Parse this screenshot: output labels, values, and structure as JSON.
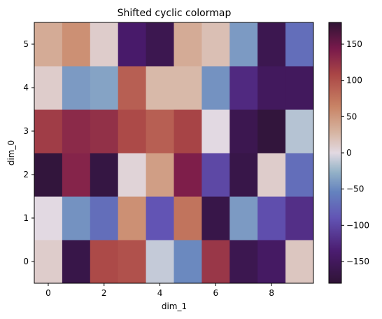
{
  "chart_data": {
    "type": "heatmap",
    "title": "Shifted cyclic colormap",
    "xlabel": "dim_1",
    "ylabel": "dim_0",
    "x_ticks": [
      0,
      2,
      4,
      6,
      8
    ],
    "y_ticks": [
      0,
      1,
      2,
      3,
      4,
      5
    ],
    "colorbar_ticks": [
      150,
      100,
      50,
      0,
      -50,
      -100,
      -150
    ],
    "colorbar_range": [
      -180,
      180
    ],
    "colormap": "twilight_shifted",
    "rows": [
      {
        "dim_0": 0,
        "values": [
          10,
          -165,
          105,
          100,
          -10,
          -50,
          120,
          -160,
          -145,
          15
        ]
      },
      {
        "dim_0": 1,
        "values": [
          0,
          -45,
          -70,
          55,
          -90,
          75,
          -165,
          -40,
          -95,
          -120
        ]
      },
      {
        "dim_0": 2,
        "values": [
          -175,
          135,
          -170,
          5,
          45,
          140,
          -100,
          -165,
          10,
          -70
        ]
      },
      {
        "dim_0": 3,
        "values": [
          115,
          130,
          125,
          105,
          90,
          110,
          0,
          -160,
          -175,
          -15
        ]
      },
      {
        "dim_0": 4,
        "values": [
          10,
          -40,
          -35,
          90,
          25,
          25,
          -45,
          -125,
          -150,
          -150
        ]
      },
      {
        "dim_0": 5,
        "values": [
          35,
          55,
          10,
          -140,
          -160,
          35,
          20,
          -40,
          -160,
          -70
        ]
      }
    ]
  }
}
